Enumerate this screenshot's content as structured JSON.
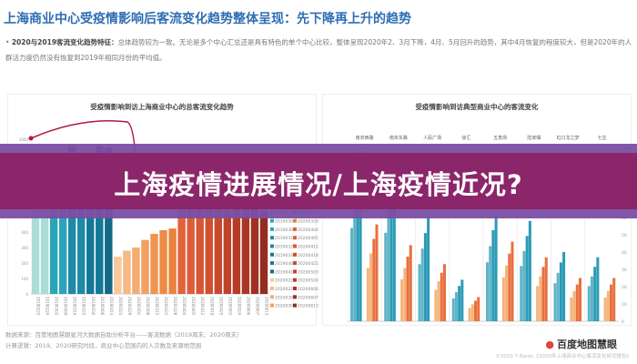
{
  "slide": {
    "title": "上海商业中心受疫情影响后客流变化趋势整体呈现：先下降再上升的趋势",
    "bullet_label": "2020与2019客流变化趋势特征：",
    "bullet_text": "总体趋势较为一致。无论是多个中心汇总还是具有特色的单个中心比较，整体呈现2020年2、3月下降，4月、5月回升的趋势，其中4月恢复的程度较大，但是2020年的人群活力度仍然没有恢复到2019年相同月份的平均值。",
    "source": "数据来源：百度地图慧眼星河大数据自助分析平台——客流数据（2019周末、2020周末）",
    "logic": "计算逻辑：2019、2020研究时段，商业中心范围内的人次数及来源地范围",
    "logo": "百度地图慧眼",
    "copyright": "©2020.7 Baidu《2020年上海商业中心客流变化研究报告》"
  },
  "banner": {
    "text": "上海疫情进展情况/上海疫情近况?",
    "band_color": "#7a4ea4",
    "inner_color": "#8c2468"
  },
  "chart_data": [
    {
      "type": "bar",
      "title": "受疫情影响到访上海商业中心的总客流变化趋势",
      "categories": [
        "20190223",
        "20190224",
        "20190302",
        "20190309",
        "20190316",
        "20190323",
        "20190330",
        "20190406",
        "20190413",
        "20200223",
        "20200229",
        "20200301",
        "20200308",
        "20200315",
        "20200322",
        "20200328",
        "20200404",
        "20200405",
        "20200412",
        "20200418",
        "20200425",
        "20200503",
        "20200524",
        "20200606",
        "20200607",
        "20200613"
      ],
      "values": [
        858,
        858,
        823,
        839,
        960,
        894,
        898,
        956,
        945,
        241,
        280,
        300,
        349,
        388,
        412,
        423,
        574,
        574,
        574,
        594,
        594,
        541,
        564,
        574,
        564,
        535
      ],
      "colors": [
        "#a9ddd6",
        "#a9ddd6",
        "#2aa5b8",
        "#2aa5b8",
        "#1e8aa6",
        "#1e8aa6",
        "#157896",
        "#157896",
        "#126a87",
        "#f7c89a",
        "#f5ba85",
        "#f3ad72",
        "#f0a060",
        "#ee9552",
        "#ec8b47",
        "#ea823e",
        "#e0643c",
        "#dc5d38",
        "#d55634",
        "#cf5031",
        "#c84a2e",
        "#bf432b",
        "#b53d28",
        "#aa3725",
        "#a03122",
        "#952c20"
      ],
      "ylim": [
        0,
        1000
      ],
      "legend": "right"
    },
    {
      "type": "bar",
      "title": "受疫情影响到访典型商业中心的客流变化",
      "categories": [
        "南京西路",
        "南京东路",
        "人民广场",
        "徐汇",
        "五角场",
        "陆家嘴",
        "虹口龙之梦",
        "七宝"
      ],
      "series": [
        {
          "values": [
            98,
            93,
            60,
            24,
            62,
            58,
            40,
            37
          ],
          "color": "#2a9bb5"
        },
        {
          "values": [
            56,
            44,
            33,
            14,
            46,
            37,
            25,
            25
          ],
          "color": "#e8703e"
        }
      ],
      "yticks": [
        0,
        10,
        20,
        30,
        40,
        50,
        60,
        70,
        80,
        90,
        100
      ],
      "ylim": [
        0,
        100
      ]
    }
  ]
}
